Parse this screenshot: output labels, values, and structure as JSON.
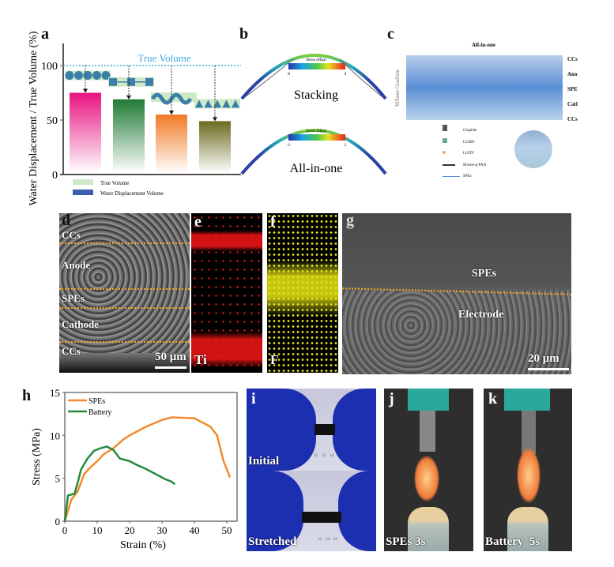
{
  "panels": {
    "a": "a",
    "b": "b",
    "c": "c",
    "d": "d",
    "e": "e",
    "f": "f",
    "g": "g",
    "h": "h",
    "i": "i",
    "j": "j",
    "k": "k"
  },
  "chart_data": [
    {
      "type": "bar",
      "panel": "a",
      "ylabel": "Water Displacement / True Volume (%)",
      "ylim": [
        0,
        120
      ],
      "yticks": [
        0,
        50,
        100
      ],
      "values": [
        75,
        69,
        55,
        49
      ],
      "colors": [
        "#e8127f",
        "#1f7a34",
        "#f07a24",
        "#6b6b1f"
      ],
      "shapes": [
        "circles",
        "squares",
        "wave",
        "triangles"
      ],
      "reference_line": {
        "value": 100,
        "label": "True Volume",
        "color": "#3fa9e0"
      },
      "legend": [
        {
          "label": "True Volume",
          "color": "#cfe8c8"
        },
        {
          "label": "Water Displacement Volume",
          "color": "#3b5fae"
        }
      ]
    },
    {
      "type": "line",
      "panel": "h",
      "xlabel": "Strain (%)",
      "ylabel": "Stress (MPa)",
      "xlim": [
        0,
        52
      ],
      "ylim": [
        0,
        15
      ],
      "xticks": [
        0,
        10,
        20,
        30,
        40,
        50
      ],
      "yticks": [
        0,
        5,
        10,
        15
      ],
      "legend_position": "top-left",
      "series": [
        {
          "name": "SPEs",
          "color": "#f28a2e",
          "x": [
            0,
            2,
            4,
            6,
            8,
            10,
            12,
            15,
            18,
            20,
            25,
            30,
            33,
            40,
            45,
            47,
            49,
            51
          ],
          "y": [
            0,
            2.5,
            3.5,
            5.5,
            6.3,
            7,
            7.8,
            8.5,
            9.5,
            10,
            11,
            11.8,
            12.1,
            12,
            11,
            10,
            7,
            5.1
          ]
        },
        {
          "name": "Battery",
          "color": "#238a3c",
          "x": [
            0,
            1,
            3,
            4,
            5,
            7,
            9,
            11,
            13,
            15,
            17,
            20,
            22,
            25,
            28,
            31,
            33,
            34
          ],
          "y": [
            0,
            3,
            3.2,
            4.5,
            6,
            7.3,
            8.2,
            8.5,
            8.7,
            8.3,
            7.3,
            7,
            6.6,
            6.1,
            5.5,
            4.9,
            4.6,
            4.3
          ]
        }
      ]
    }
  ],
  "b": {
    "stacking": "Stacking",
    "allinone": "All-in-one",
    "colorbar_title": "Stress (Mpa)",
    "stack_min": "-8",
    "stack_max": "8",
    "aio_min": "-2",
    "aio_max": "2"
  },
  "c": {
    "title": "All-in-one",
    "gradient": "MXene Gradient",
    "layers": [
      "CCs",
      "Ano",
      "SPE",
      "Catl",
      "CCs"
    ],
    "legend": [
      "Graphite",
      "LCMO",
      "LiOTF",
      "Mxene-g-PAN",
      "SPEs"
    ]
  },
  "d": {
    "layers": [
      "CCs",
      "Anode",
      "SPEs",
      "Cathode",
      "CCs"
    ],
    "scale": "50 μm"
  },
  "e": {
    "element": "Ti"
  },
  "f": {
    "element": "F"
  },
  "g": {
    "top": "SPEs",
    "bottom": "Electrode",
    "scale": "20 μm"
  },
  "i": {
    "top": "Initial",
    "bottom": "Stretched",
    "ruler_top": [
      "12",
      "13",
      "14"
    ],
    "ruler_bottom": [
      "13",
      "14",
      "15"
    ]
  },
  "j": {
    "caption": "SPEs 3s"
  },
  "k": {
    "caption": "Battery  5s"
  }
}
